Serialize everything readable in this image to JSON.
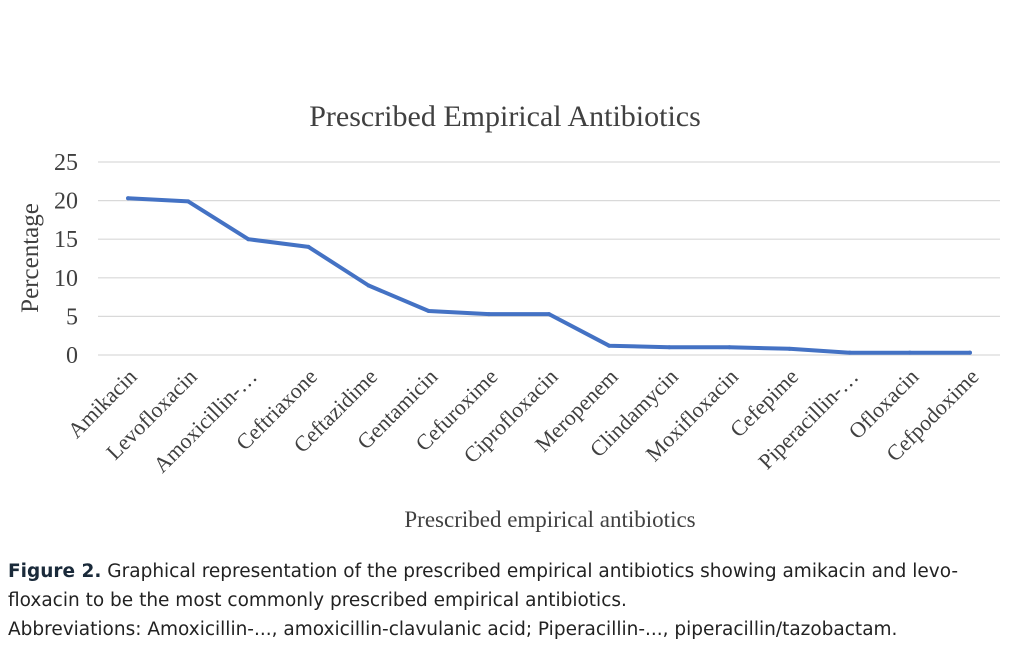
{
  "chart_data": {
    "type": "line",
    "title": "Prescribed Empirical Antibiotics",
    "xlabel": "Prescribed empirical antibiotics",
    "ylabel": "Percentage",
    "ylim": [
      0,
      25
    ],
    "yticks": [
      0,
      5,
      10,
      15,
      20,
      25
    ],
    "grid": true,
    "categories": [
      "Amikacin",
      "Levofloxacin",
      "Amoxicillin-…",
      "Ceftriaxone",
      "Ceftazidime",
      "Gentamicin",
      "Cefuroxime",
      "Ciprofloxacin",
      "Meropenem",
      "Clindamycin",
      "Moxifloxacin",
      "Cefepime",
      "Piperacillin-…",
      "Ofloxacin",
      "Cefpodoxime"
    ],
    "series": [
      {
        "name": "Percentage",
        "color": "#4472C4",
        "values": [
          20.3,
          19.9,
          15.0,
          14.0,
          9.0,
          5.7,
          5.3,
          5.3,
          1.2,
          1.0,
          1.0,
          0.8,
          0.3,
          0.3,
          0.3
        ]
      }
    ]
  },
  "caption": {
    "figure_label": "Figure 2.",
    "text": "Graphical representation of the prescribed empirical antibiotics showing amikacin and levo-floxacin to be the most commonly prescribed empirical antibiotics.",
    "abbreviations": "Abbreviations: Amoxicillin-..., amoxicillin-clavulanic acid; Piperacillin-..., piperacillin/tazobactam."
  }
}
